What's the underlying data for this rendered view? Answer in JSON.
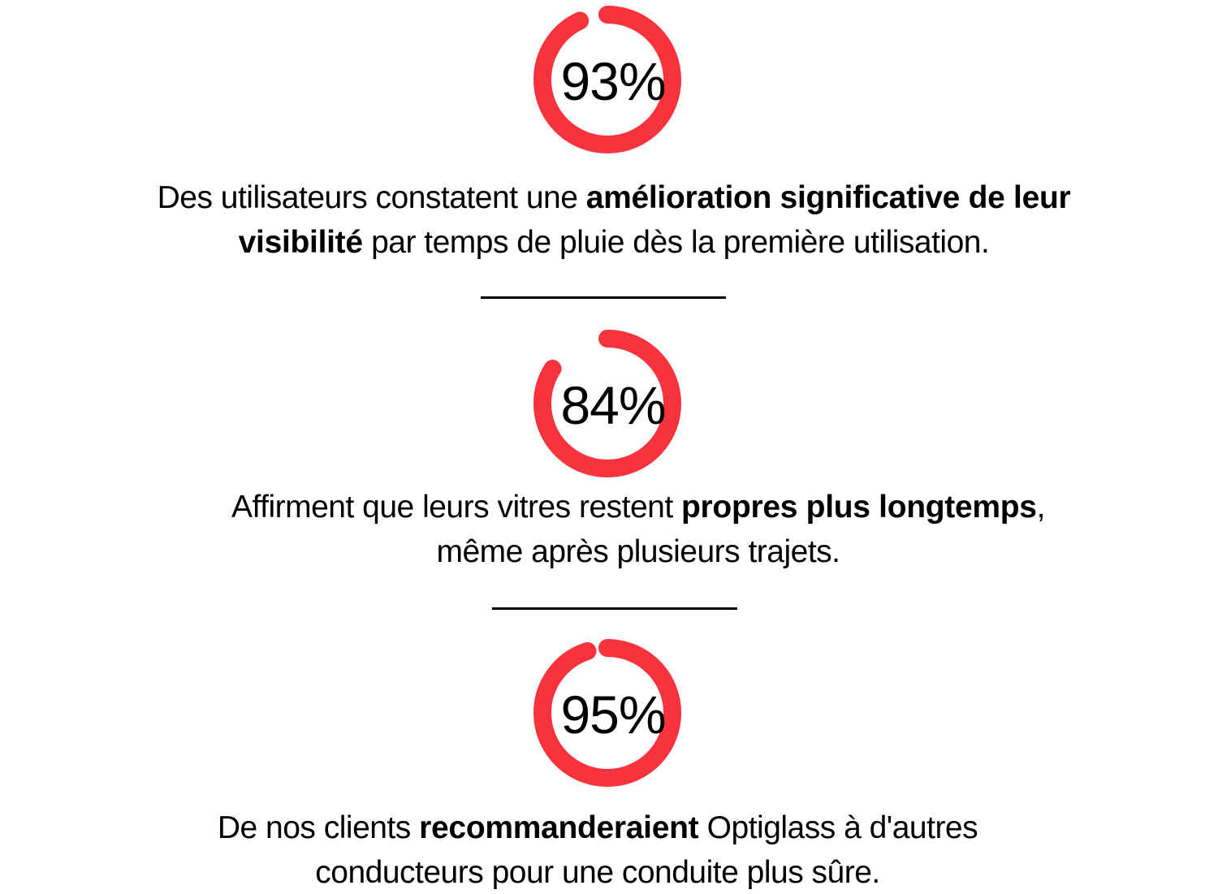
{
  "theme": {
    "accent_red": "#F8333D",
    "text_black": "#000000",
    "divider_black": "#000000",
    "background": "#FFFFFF"
  },
  "chart_data": [
    {
      "type": "pie",
      "style": "radial-progress-ring",
      "value_percent": 93,
      "value_label": "93%",
      "gap_position": "top-left",
      "caption": "Des utilisateurs constatent une amélioration significative de leur visibilité par temps de pluie dès la première utilisation.",
      "caption_bold_phrase": "amélioration significative de leur visibilité",
      "caption_lines": [
        [
          {
            "text": "Des utilisateurs constatent une ",
            "bold": false
          },
          {
            "text": "amélioration significative de leur",
            "bold": true
          }
        ],
        [
          {
            "text": "visibilité",
            "bold": true
          },
          {
            "text": " par temps de pluie dès la première utilisation.",
            "bold": false
          }
        ]
      ]
    },
    {
      "type": "pie",
      "style": "radial-progress-ring",
      "value_percent": 84,
      "value_label": "84%",
      "gap_position": "top-left",
      "caption": "Affirment que leurs vitres restent propres plus longtemps, même après plusieurs trajets.",
      "caption_bold_phrase": "propres plus longtemps",
      "caption_lines": [
        [
          {
            "text": "Affirment que leurs vitres restent ",
            "bold": false
          },
          {
            "text": "propres plus longtemps",
            "bold": true
          },
          {
            "text": ",",
            "bold": false
          }
        ],
        [
          {
            "text": "même après plusieurs trajets.",
            "bold": false
          }
        ]
      ]
    },
    {
      "type": "pie",
      "style": "radial-progress-ring",
      "value_percent": 95,
      "value_label": "95%",
      "gap_position": "top-left",
      "caption": "De nos clients recommanderaient Optiglass à d'autres conducteurs pour une conduite plus sûre.",
      "caption_bold_phrase": "recommanderaient",
      "caption_lines": [
        [
          {
            "text": "De nos clients ",
            "bold": false
          },
          {
            "text": "recommanderaient",
            "bold": true
          },
          {
            "text": " Optiglass à d'autres",
            "bold": false
          }
        ],
        [
          {
            "text": "conducteurs pour une conduite plus sûre.",
            "bold": false
          }
        ]
      ]
    }
  ]
}
